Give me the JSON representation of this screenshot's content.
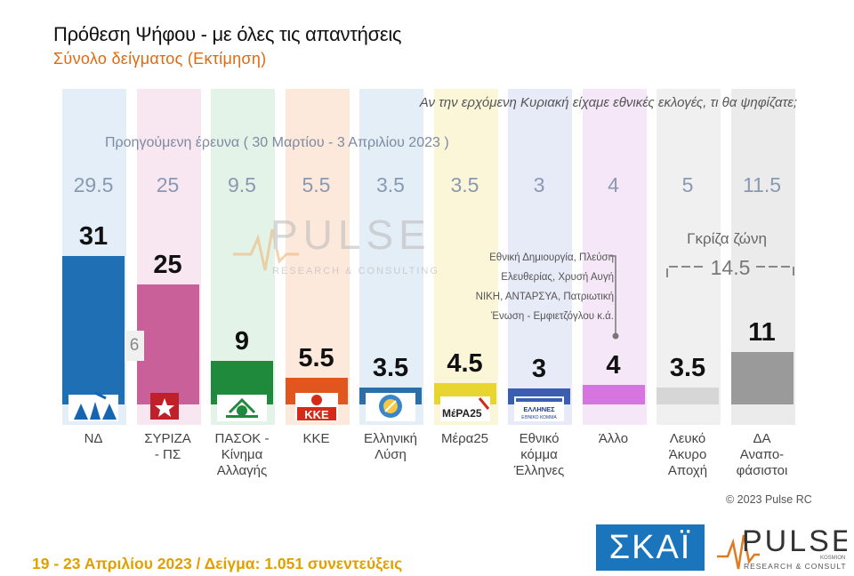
{
  "title": "Πρόθεση Ψήφου - με όλες τις απαντήσεις",
  "subtitle": "Σύνολο δείγματος   (Εκτίμηση)",
  "question": "Αν την ερχόμενη Κυριακή είχαμε εθνικές εκλογές, τι θα ψηφίζατε;",
  "previous_survey_label": "Προηγούμενη έρευνα  ( 30 Μαρτίου - 3 Απριλίου  2023 )",
  "previous_marker": "6",
  "gray_zone": {
    "label": "Γκρίζα ζώνη",
    "value": "14.5"
  },
  "other_note": [
    "Εθνική Δημιουργία, Πλεύση",
    "Ελευθερίας, Χρυσή Αυγή",
    "ΝΙΚΗ, ΑΝΤΑΡΣΥΑ, Πατριωτική",
    "Ένωση - Εμφιετζόγλου  κ.ά."
  ],
  "copyright": "© 2023 Pulse RC",
  "footer": "19 - 23  Απριλίου  2023  /  Δείγμα:  1.051 συνεντεύξεις",
  "skai_logo_text": "ΣΚΑΪ",
  "pulse_logo": {
    "name": "PULSE",
    "tag": "RESEARCH & CONSULTING",
    "small": "KOSMION"
  },
  "chart_data": {
    "type": "bar",
    "categories": [
      "ΝΔ",
      "ΣΥΡΙΖΑ - ΠΣ",
      "ΠΑΣΟΚ - Κίνημα Αλλαγής",
      "ΚΚΕ",
      "Ελληνική Λύση",
      "Μέρα25",
      "Εθνικό κόμμα Έλληνες",
      "Άλλο",
      "Λευκό Άκυρο Αποχή",
      "ΔΑ Αναποφάσιστοι"
    ],
    "label_lines": [
      [
        "ΝΔ"
      ],
      [
        "ΣΥΡΙΖΑ",
        "- ΠΣ"
      ],
      [
        "ΠΑΣΟΚ -",
        "Κίνημα",
        "Αλλαγής"
      ],
      [
        "ΚΚΕ"
      ],
      [
        "Ελληνική",
        "Λύση"
      ],
      [
        "Μέρα25"
      ],
      [
        "Εθνικό",
        "κόμμα",
        "Έλληνες"
      ],
      [
        "Άλλο"
      ],
      [
        "Λευκό",
        "Άκυρο",
        "Αποχή"
      ],
      [
        "ΔΑ",
        "Αναπο-",
        "φάσιστοι"
      ]
    ],
    "series": [
      {
        "name": "Προηγούμενη έρευνα",
        "values": [
          29.5,
          25,
          9.5,
          5.5,
          3.5,
          3.5,
          3,
          4,
          5,
          11.5
        ]
      },
      {
        "values": [
          31,
          25,
          9,
          5.5,
          3.5,
          4.5,
          3,
          4,
          3.5,
          11
        ]
      }
    ],
    "value_labels": [
      "31",
      "25",
      "9",
      "5.5",
      "3.5",
      "4.5",
      "3",
      "4",
      "3.5",
      "11"
    ],
    "prev_labels": [
      "29.5",
      "25",
      "9.5",
      "5.5",
      "3.5",
      "3.5",
      "3",
      "4",
      "5",
      "11.5"
    ],
    "colors": [
      "#1f6fb5",
      "#c9609a",
      "#1f8a3c",
      "#e0561e",
      "#2a6fa8",
      "#e8d530",
      "#3a5fb0",
      "#d774e0",
      "#d6d6d6",
      "#9a9a9a"
    ],
    "band_colors": [
      "#e4eef8",
      "#f8e6f0",
      "#e4f3e8",
      "#fde9dc",
      "#e4eef7",
      "#fbf6d8",
      "#e6ebf7",
      "#f5e6f8",
      "#f0f0f0",
      "#ebebeb"
    ],
    "logos": [
      "nd-logo",
      "syriza-logo",
      "pasok-logo",
      "kke-logo",
      "elliniki-lysi-logo",
      "mera25-logo",
      "ellines-logo",
      "",
      "",
      ""
    ]
  }
}
